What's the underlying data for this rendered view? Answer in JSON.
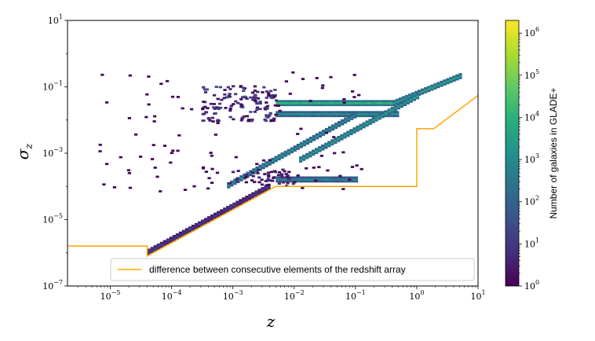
{
  "chart_data": {
    "type": "heatmap",
    "title": "",
    "xlabel": "z",
    "ylabel": "σ_z",
    "xscale": "log",
    "yscale": "log",
    "xlim": [
      2e-06,
      10
    ],
    "ylim": [
      1e-07,
      10
    ],
    "x_ticks": [
      {
        "value": 1e-05,
        "base": "10",
        "exp": "−5"
      },
      {
        "value": 0.0001,
        "base": "10",
        "exp": "−4"
      },
      {
        "value": 0.001,
        "base": "10",
        "exp": "−3"
      },
      {
        "value": 0.01,
        "base": "10",
        "exp": "−2"
      },
      {
        "value": 0.1,
        "base": "10",
        "exp": "−1"
      },
      {
        "value": 1,
        "base": "10",
        "exp": "0"
      },
      {
        "value": 10,
        "base": "10",
        "exp": "1"
      }
    ],
    "y_ticks": [
      {
        "value": 1e-07,
        "base": "10",
        "exp": "−7"
      },
      {
        "value": 1e-05,
        "base": "10",
        "exp": "−5"
      },
      {
        "value": 0.001,
        "base": "10",
        "exp": "−3"
      },
      {
        "value": 0.1,
        "base": "10",
        "exp": "−1"
      },
      {
        "value": 10,
        "base": "10",
        "exp": "1"
      }
    ],
    "line_series": {
      "name": "difference between consecutive elements of the redshift array",
      "color": "#ffa500",
      "x": [
        2e-06,
        4e-05,
        4e-05,
        0.005,
        1,
        1,
        1.9,
        10
      ],
      "y": [
        1.6e-06,
        1.6e-06,
        8e-07,
        0.0001,
        0.0001,
        0.0055,
        0.0055,
        0.055
      ]
    },
    "density_features": [
      {
        "kind": "band",
        "x": [
          0.005,
          0.4
        ],
        "y": [
          0.03,
          0.03
        ],
        "level": 0.65
      },
      {
        "kind": "band",
        "x": [
          0.4,
          5
        ],
        "y": [
          0.03,
          0.2
        ],
        "level": 0.55
      },
      {
        "kind": "band",
        "x": [
          0.005,
          0.5
        ],
        "y": [
          0.014,
          0.014
        ],
        "level": 0.5
      },
      {
        "kind": "band",
        "x": [
          0.012,
          1.0
        ],
        "y": [
          0.0006,
          0.05
        ],
        "level": 0.55
      },
      {
        "kind": "band",
        "x": [
          0.0008,
          0.1
        ],
        "y": [
          0.0001,
          0.014
        ],
        "level": 0.5
      },
      {
        "kind": "band",
        "x": [
          4e-05,
          0.004
        ],
        "y": [
          1e-06,
          0.0001
        ],
        "level": 0.15
      },
      {
        "kind": "band",
        "x": [
          0.005,
          0.1
        ],
        "y": [
          0.00015,
          0.00015
        ],
        "level": 0.45
      },
      {
        "kind": "cloud",
        "x": [
          0.0003,
          0.005
        ],
        "y": [
          0.008,
          0.1
        ],
        "level": 0.25
      },
      {
        "kind": "cloud",
        "x": [
          0.0008,
          0.01
        ],
        "y": [
          0.0001,
          0.0003
        ],
        "level": 0.15
      }
    ],
    "colorbar": {
      "label": "Number of galaxies in GLADE+",
      "scale": "log",
      "range": [
        1,
        2000000.0
      ],
      "colormap": "viridis",
      "ticks": [
        {
          "value": 1,
          "base": "10",
          "exp": "0"
        },
        {
          "value": 10,
          "base": "10",
          "exp": "1"
        },
        {
          "value": 100,
          "base": "10",
          "exp": "2"
        },
        {
          "value": 1000,
          "base": "10",
          "exp": "3"
        },
        {
          "value": 10000,
          "base": "10",
          "exp": "4"
        },
        {
          "value": 100000,
          "base": "10",
          "exp": "5"
        },
        {
          "value": 1000000,
          "base": "10",
          "exp": "6"
        }
      ]
    },
    "legend": {
      "location": "lower-right",
      "entries": [
        "difference between consecutive elements of the redshift array"
      ]
    }
  }
}
